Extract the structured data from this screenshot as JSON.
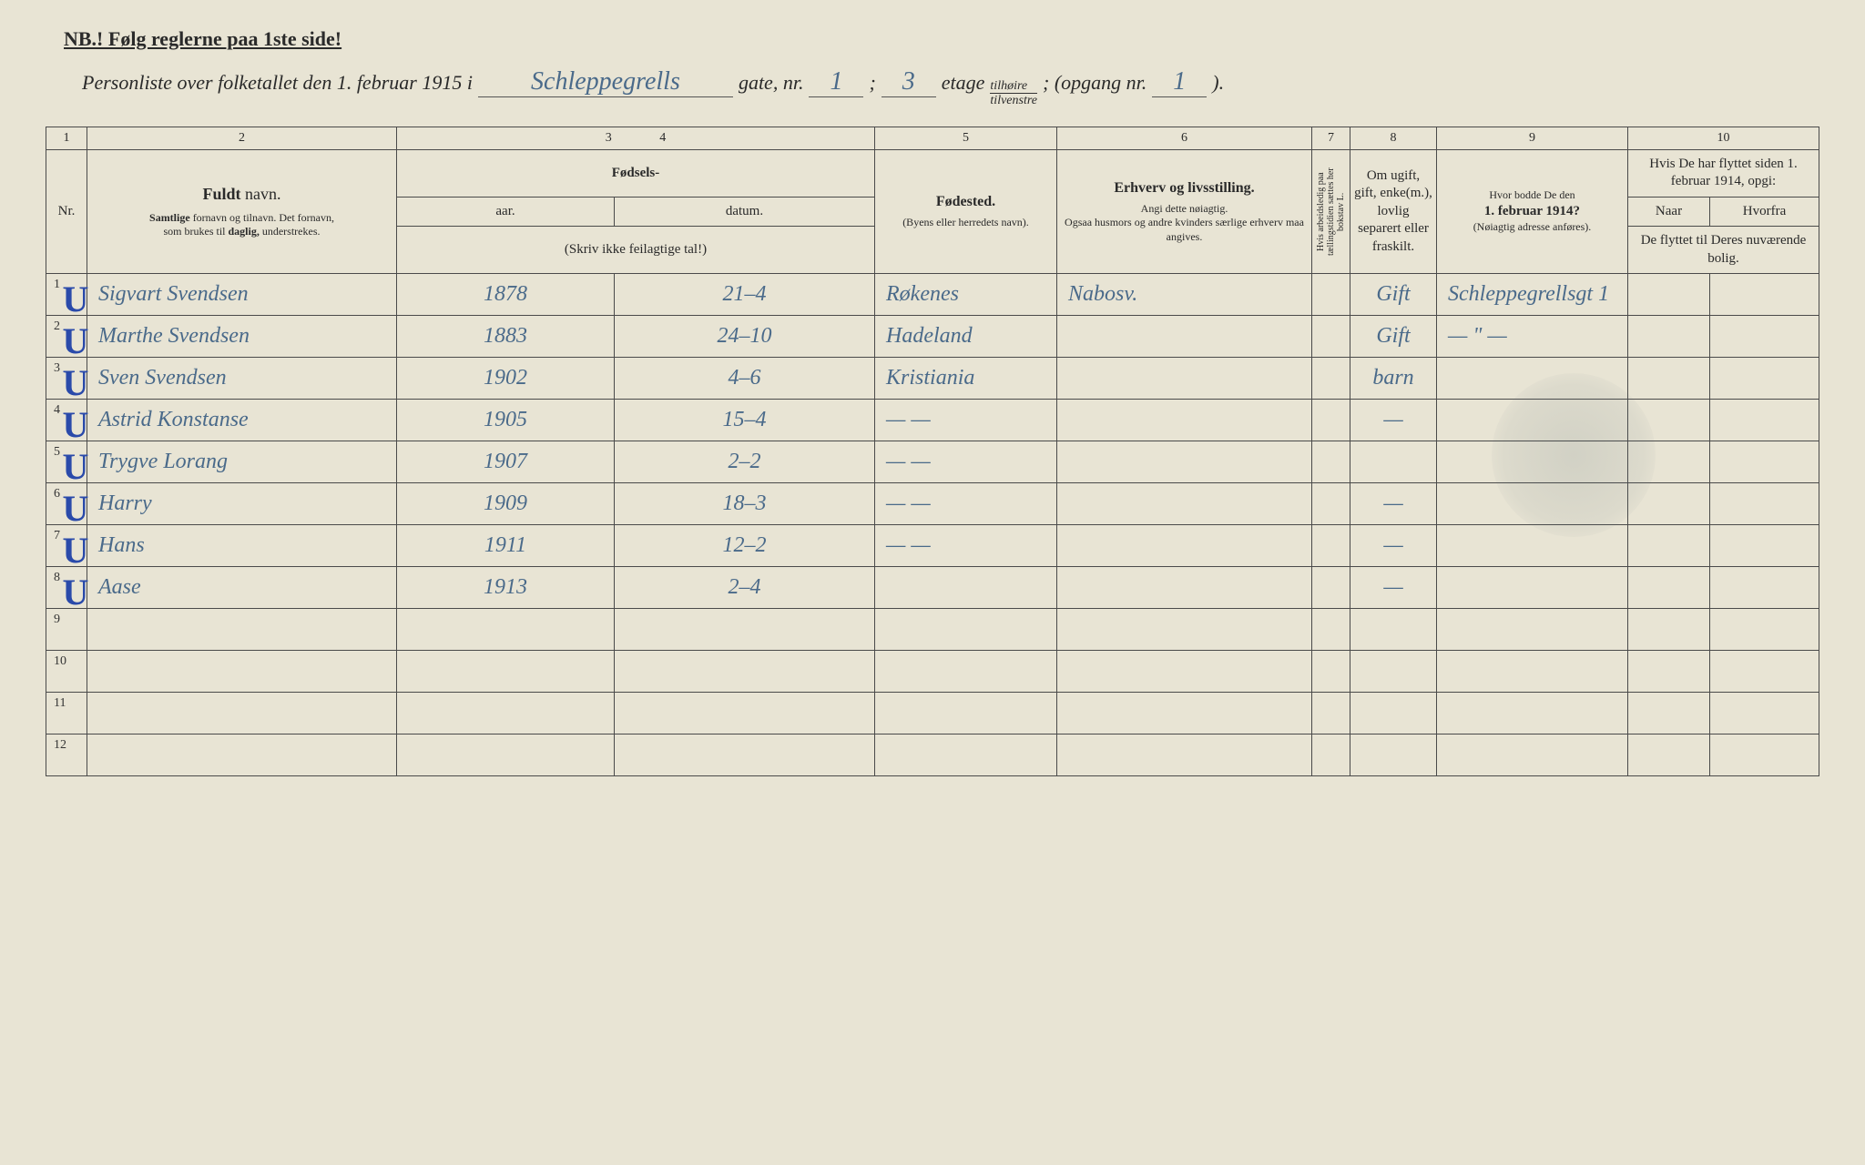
{
  "header": {
    "note": "NB.!  Følg reglerne paa 1ste side!",
    "subtitle_prefix": "Personliste over folketallet den 1. februar 1915 i",
    "street_name": "Schleppegrells",
    "gate_label": "gate, nr.",
    "gate_nr": "1",
    "semicolon": ";",
    "etage_nr": "3",
    "etage_label": "etage",
    "tilhoire": "tilhøire",
    "tilvenstre": "tilvenstre",
    "opgang_label": "; (opgang nr.",
    "opgang_nr": "1",
    "closing": ")."
  },
  "columns": {
    "nums": [
      "1",
      "2",
      "3",
      "4",
      "5",
      "6",
      "7",
      "8",
      "9",
      "10"
    ],
    "nr": "Nr.",
    "name_bold": "Fuldt",
    "name_rest": " navn.",
    "name_sub1": "Samtlige",
    "name_sub1b": " fornavn og tilnavn.   Det fornavn,",
    "name_sub2": "som brukes til ",
    "name_sub2b": "daglig,",
    "name_sub2c": " understrekes.",
    "birth_header": "Fødsels-",
    "birth_year": "aar.",
    "birth_date": "datum.",
    "birth_note": "(Skriv ikke feilagtige tal!)",
    "birthplace": "Fødested.",
    "birthplace_sub": "(Byens eller herredets navn).",
    "occupation": "Erhverv og livsstilling.",
    "occupation_sub": "Angi dette nøiagtig.\nOgsaa husmors og andre kvinders særlige erhverv maa angives.",
    "col7": "Hvis arbeidsledig paa tællingstidien sættes her bokstav L.",
    "col8": "Om ugift, gift, enke(m.), lovlig separert eller fraskilt.",
    "col9": "Hvor bodde De den",
    "col9b": "1. februar 1914?",
    "col9_sub": "(Nøiagtig adresse anføres).",
    "col10": "Hvis De har flyttet siden 1. februar 1914, opgi:",
    "col10a": "Naar",
    "col10b": "Hvorfra",
    "col10_sub": "De flyttet til Deres nuværende bolig."
  },
  "rows": [
    {
      "nr": "1",
      "check": "U",
      "name": "Sigvart Svendsen",
      "year": "1878",
      "date": "21–4",
      "birthplace": "Røkenes",
      "occupation": "Nabosv.",
      "marital": "Gift",
      "addr1914": "Schleppegrellsgt 1"
    },
    {
      "nr": "2",
      "check": "U",
      "name": "Marthe Svendsen",
      "year": "1883",
      "date": "24–10",
      "birthplace": "Hadeland",
      "occupation": "",
      "marital": "Gift",
      "addr1914": "— \" —"
    },
    {
      "nr": "3",
      "check": "U",
      "name": "Sven Svendsen",
      "year": "1902",
      "date": "4–6",
      "birthplace": "Kristiania",
      "occupation": "",
      "marital": "barn",
      "addr1914": ""
    },
    {
      "nr": "4",
      "check": "U",
      "name": "Astrid Konstanse",
      "year": "1905",
      "date": "15–4",
      "birthplace": "—  —",
      "occupation": "",
      "marital": "—",
      "addr1914": ""
    },
    {
      "nr": "5",
      "check": "U",
      "name": "Trygve Lorang",
      "year": "1907",
      "date": "2–2",
      "birthplace": "—  —",
      "occupation": "",
      "marital": "",
      "addr1914": ""
    },
    {
      "nr": "6",
      "check": "U",
      "name": "Harry",
      "year": "1909",
      "date": "18–3",
      "birthplace": "—  —",
      "occupation": "",
      "marital": "—",
      "addr1914": ""
    },
    {
      "nr": "7",
      "check": "U",
      "name": "Hans",
      "year": "1911",
      "date": "12–2",
      "birthplace": "—  —",
      "occupation": "",
      "marital": "—",
      "addr1914": ""
    },
    {
      "nr": "8",
      "check": "U",
      "name": "Aase",
      "year": "1913",
      "date": "2–4",
      "birthplace": "",
      "occupation": "",
      "marital": "—",
      "addr1914": ""
    },
    {
      "nr": "9",
      "check": "",
      "name": "",
      "year": "",
      "date": "",
      "birthplace": "",
      "occupation": "",
      "marital": "",
      "addr1914": ""
    },
    {
      "nr": "10",
      "check": "",
      "name": "",
      "year": "",
      "date": "",
      "birthplace": "",
      "occupation": "",
      "marital": "",
      "addr1914": ""
    },
    {
      "nr": "11",
      "check": "",
      "name": "",
      "year": "",
      "date": "",
      "birthplace": "",
      "occupation": "",
      "marital": "",
      "addr1914": ""
    },
    {
      "nr": "12",
      "check": "",
      "name": "",
      "year": "",
      "date": "",
      "birthplace": "",
      "occupation": "",
      "marital": "",
      "addr1914": ""
    }
  ]
}
